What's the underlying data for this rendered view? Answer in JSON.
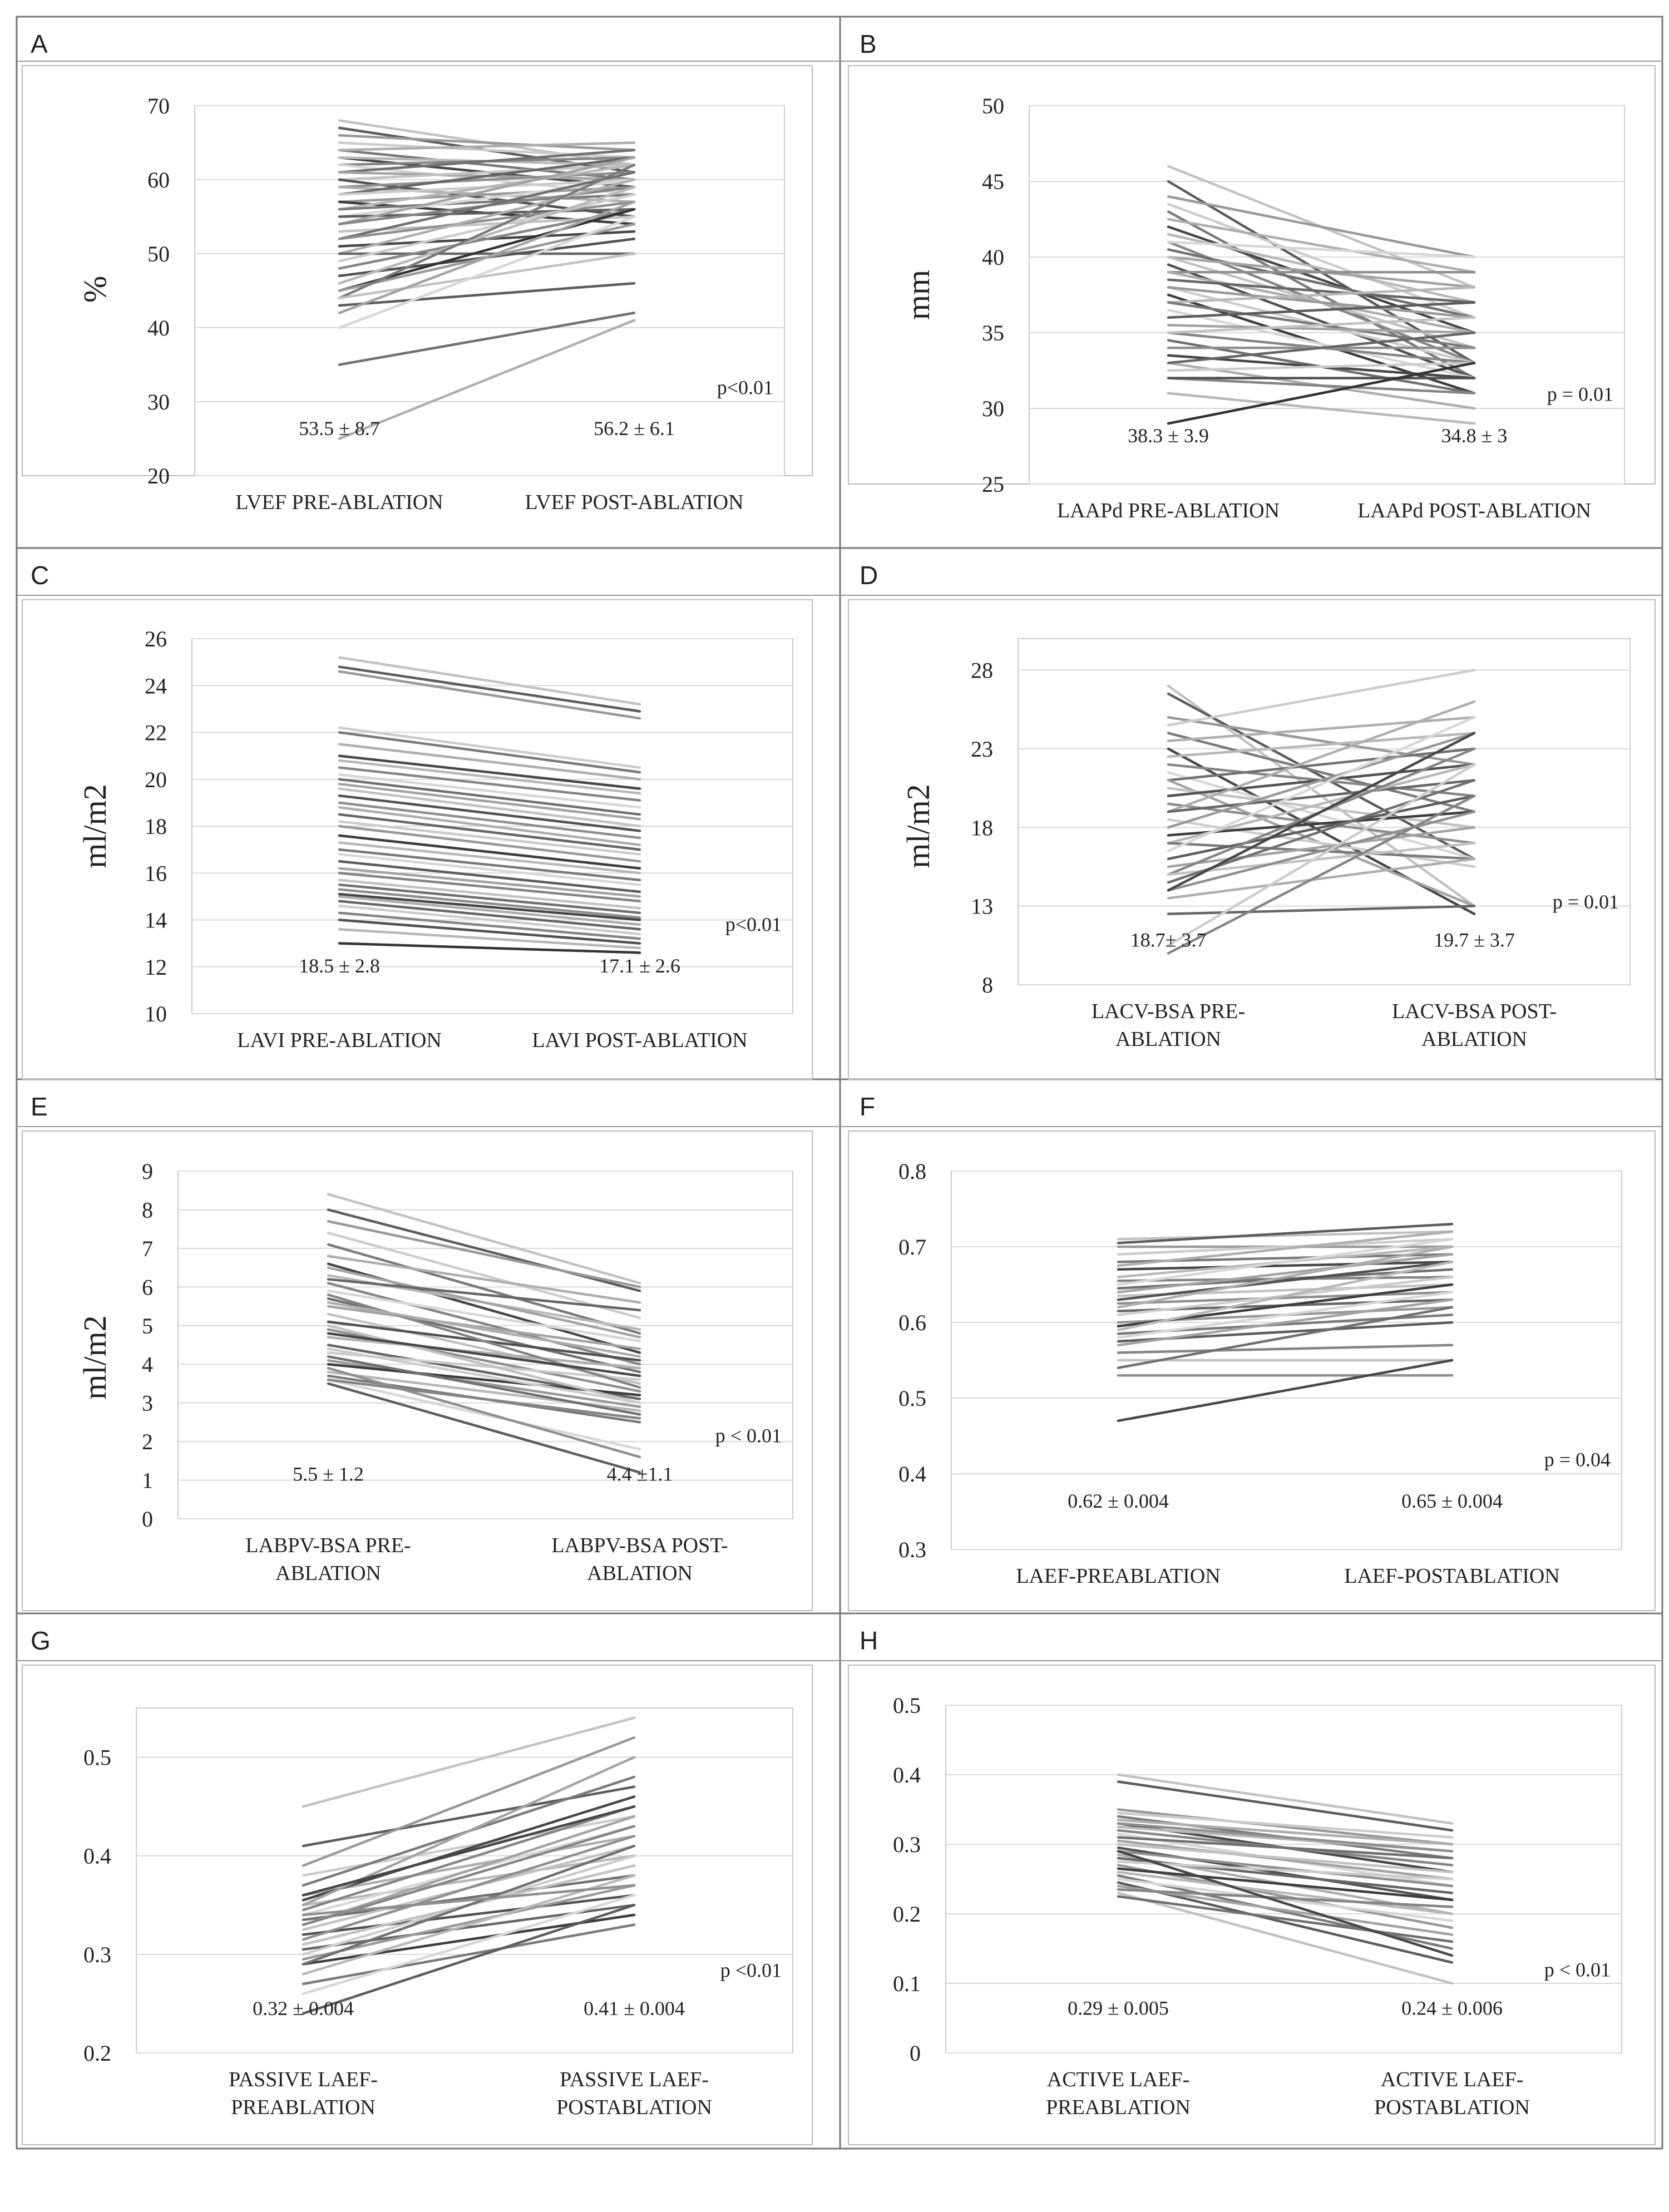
{
  "figure": {
    "title": ""
  },
  "chart_data": [
    {
      "panel": "A",
      "type": "line",
      "categories": [
        "LVEF PRE-ABLATION",
        "LVEF POST-ABLATION"
      ],
      "ylabel": "%",
      "ylim": [
        20,
        70
      ],
      "yticks": [
        "70",
        "60",
        "50",
        "40",
        "30",
        "20"
      ],
      "tick_values": [
        70,
        60,
        50,
        40,
        30,
        20
      ],
      "annot_pre": "53.5 ± 8.7",
      "annot_post": "56.2 ± 6.1",
      "pvalue": "p<0.01",
      "series_pre": [
        68,
        67,
        66,
        65,
        64,
        64,
        63,
        63,
        62,
        62,
        61,
        61,
        60,
        60,
        59,
        59,
        58,
        58,
        57,
        57,
        56,
        56,
        55,
        55,
        54,
        54,
        53,
        52,
        52,
        51,
        50,
        50,
        49,
        48,
        47,
        46,
        45,
        45,
        44,
        44,
        43,
        42,
        40,
        35,
        25
      ],
      "series_post": [
        62,
        61,
        64,
        63,
        60,
        65,
        59,
        62,
        63,
        58,
        64,
        60,
        62,
        55,
        61,
        57,
        63,
        60,
        59,
        54,
        62,
        58,
        60,
        56,
        63,
        59,
        55,
        61,
        57,
        53,
        60,
        50,
        58,
        56,
        52,
        59,
        56,
        54,
        62,
        50,
        46,
        57,
        55,
        42,
        41
      ],
      "shades": [
        0.2,
        0.7,
        0.4,
        0.15,
        0.55,
        0.3,
        0.8,
        0.25,
        0.5,
        0.1,
        0.6,
        0.35,
        0.2,
        0.75,
        0.45,
        0.3,
        0.65,
        0.15,
        0.4,
        0.85,
        0.25,
        0.55,
        0.1,
        0.7,
        0.35,
        0.5,
        0.2,
        0.6,
        0.45,
        0.8,
        0.3,
        0.65,
        0.15,
        0.5,
        0.75,
        0.25,
        0.9,
        0.4,
        0.55,
        0.2,
        0.7,
        0.35,
        0.1,
        0.6,
        0.3
      ]
    },
    {
      "panel": "B",
      "type": "line",
      "categories": [
        "LAAPd PRE-ABLATION",
        "LAAPd POST-ABLATION"
      ],
      "ylabel": "mm",
      "ylim": [
        25,
        50
      ],
      "yticks": [
        "50",
        "45",
        "40",
        "35",
        "30",
        "25"
      ],
      "tick_values": [
        50,
        45,
        40,
        35,
        30,
        25
      ],
      "annot_pre": "38.3 ± 3.9",
      "annot_post": "34.8 ± 3",
      "pvalue": "p = 0.01",
      "series_pre": [
        46,
        45,
        44,
        43.5,
        43,
        42.5,
        42,
        41.5,
        41,
        41,
        40.5,
        40,
        40,
        39.5,
        39,
        39,
        38.5,
        38,
        38,
        37.5,
        37,
        37,
        36.5,
        36,
        35.5,
        35,
        35,
        34.5,
        34,
        33.5,
        33,
        33,
        32.5,
        32,
        32,
        31,
        29
      ],
      "series_post": [
        38,
        33,
        40,
        36,
        32,
        39,
        35,
        37,
        33,
        40,
        36,
        38,
        34,
        32,
        39,
        35,
        37,
        33,
        36,
        31,
        38,
        34,
        32,
        37,
        35,
        33,
        36,
        31,
        34,
        32,
        30,
        35,
        33,
        31,
        32,
        29,
        33
      ],
      "shades": [
        0.2,
        0.7,
        0.4,
        0.15,
        0.55,
        0.3,
        0.8,
        0.25,
        0.5,
        0.1,
        0.6,
        0.35,
        0.2,
        0.75,
        0.45,
        0.3,
        0.65,
        0.15,
        0.4,
        0.85,
        0.25,
        0.55,
        0.1,
        0.7,
        0.35,
        0.5,
        0.2,
        0.6,
        0.45,
        0.8,
        0.3,
        0.65,
        0.15,
        0.5,
        0.75,
        0.25,
        0.9
      ]
    },
    {
      "panel": "C",
      "type": "line",
      "categories": [
        "LAVI PRE-ABLATION",
        "LAVI POST-ABLATION"
      ],
      "ylabel": "ml/m2",
      "ylim": [
        10,
        26
      ],
      "yticks": [
        "26",
        "24",
        "22",
        "20",
        "18",
        "16",
        "14",
        "12",
        "10"
      ],
      "tick_values": [
        26,
        24,
        22,
        20,
        18,
        16,
        14,
        12,
        10
      ],
      "annot_pre": "18.5 ± 2.8",
      "annot_post": "17.1 ± 2.6",
      "pvalue": "p<0.01",
      "series_pre": [
        25.2,
        24.8,
        24.6,
        22.2,
        22,
        21.5,
        21,
        20.8,
        20.5,
        20.2,
        20,
        19.8,
        19.6,
        19.3,
        19,
        18.8,
        18.5,
        18.2,
        18,
        17.6,
        17.3,
        17,
        16.8,
        16.5,
        16.2,
        16,
        15.7,
        15.5,
        15.3,
        15.1,
        15,
        14.8,
        14.6,
        14.3,
        14,
        13.6,
        13
      ],
      "series_post": [
        23.2,
        22.9,
        22.6,
        20.5,
        20.3,
        20,
        19.6,
        19.4,
        19.1,
        18.8,
        18.5,
        18.3,
        18,
        17.8,
        17.5,
        17.2,
        17,
        16.8,
        16.5,
        16.2,
        16,
        15.7,
        15.5,
        15.2,
        15,
        14.8,
        14.5,
        14.3,
        14.1,
        14,
        13.8,
        13.6,
        13.4,
        13.2,
        13,
        12.8,
        12.6
      ],
      "shades": [
        0.2,
        0.7,
        0.4,
        0.15,
        0.55,
        0.3,
        0.8,
        0.25,
        0.5,
        0.1,
        0.6,
        0.35,
        0.2,
        0.75,
        0.45,
        0.3,
        0.65,
        0.15,
        0.4,
        0.85,
        0.25,
        0.55,
        0.1,
        0.7,
        0.35,
        0.5,
        0.2,
        0.6,
        0.45,
        0.8,
        0.3,
        0.65,
        0.15,
        0.5,
        0.75,
        0.25,
        0.9
      ]
    },
    {
      "panel": "D",
      "type": "line",
      "categories": [
        "LACV-BSA PRE-\nABLATION",
        "LACV-BSA POST-\nABLATION"
      ],
      "ylabel": "ml/m2",
      "ylim": [
        8,
        30
      ],
      "yticks": [
        "28",
        "23",
        "18",
        "13",
        "8"
      ],
      "tick_values": [
        28,
        23,
        18,
        13,
        8
      ],
      "annot_pre": "18.7± 3.7",
      "annot_post": "19.7 ± 3.7",
      "pvalue": "p = 0.01",
      "series_pre": [
        27,
        26.5,
        25,
        24.5,
        24,
        23.5,
        23,
        22.5,
        22,
        21.5,
        21,
        21,
        20.5,
        20,
        19.5,
        19,
        19,
        18.5,
        18,
        17.5,
        17,
        17,
        16.5,
        16,
        15.5,
        15,
        15,
        14.5,
        14,
        14,
        13.5,
        12.5,
        10.5,
        10
      ],
      "series_post": [
        13,
        16,
        22,
        28,
        19,
        25,
        12.5,
        24,
        20,
        16,
        23,
        13,
        18,
        22,
        17,
        26,
        21,
        15.5,
        24,
        19,
        22,
        16,
        25,
        20,
        18,
        23,
        17,
        21,
        19,
        24,
        16,
        13,
        22,
        20
      ],
      "shades": [
        0.2,
        0.7,
        0.4,
        0.15,
        0.55,
        0.3,
        0.8,
        0.25,
        0.5,
        0.1,
        0.6,
        0.35,
        0.2,
        0.75,
        0.45,
        0.3,
        0.65,
        0.15,
        0.4,
        0.85,
        0.25,
        0.55,
        0.1,
        0.7,
        0.35,
        0.5,
        0.2,
        0.6,
        0.45,
        0.8,
        0.3,
        0.65,
        0.15,
        0.5
      ]
    },
    {
      "panel": "E",
      "type": "line",
      "categories": [
        "LABPV-BSA PRE-\nABLATION",
        "LABPV-BSA POST-\nABLATION"
      ],
      "ylabel": "ml/m2",
      "ylim": [
        0,
        9
      ],
      "yticks": [
        "9",
        "8",
        "7",
        "6",
        "5",
        "4",
        "3",
        "2",
        "1",
        "0"
      ],
      "tick_values": [
        9,
        8,
        7,
        6,
        5,
        4,
        3,
        2,
        1,
        0
      ],
      "annot_pre": "5.5 ± 1.2",
      "annot_post": "4.4 ±1.1",
      "pvalue": "p < 0.01",
      "series_pre": [
        8.4,
        8,
        7.7,
        7.4,
        7.1,
        6.8,
        6.6,
        6.3,
        6.1,
        5.9,
        5.7,
        5.5,
        5.3,
        5.1,
        4.9,
        4.7,
        4.5,
        4.3,
        4.1,
        4,
        3.8,
        3.7,
        3.6,
        3.5,
        6.5,
        5.8,
        5,
        4.2,
        3.9,
        4.8,
        5.6,
        6.2,
        4.4,
        3.6
      ],
      "series_post": [
        6.1,
        5.9,
        6,
        5.2,
        4.8,
        5.6,
        4.3,
        4.9,
        4,
        4.6,
        3.8,
        4.4,
        3.5,
        4.1,
        3.3,
        3.9,
        3.1,
        3.6,
        2.9,
        3.2,
        2.8,
        2.5,
        1.8,
        1.2,
        4.7,
        3.4,
        3,
        2.7,
        1.6,
        3.7,
        4.2,
        5.4,
        3,
        2.6
      ],
      "shades": [
        0.2,
        0.7,
        0.4,
        0.15,
        0.55,
        0.3,
        0.8,
        0.25,
        0.5,
        0.1,
        0.6,
        0.35,
        0.2,
        0.75,
        0.45,
        0.3,
        0.65,
        0.15,
        0.4,
        0.85,
        0.25,
        0.55,
        0.1,
        0.7,
        0.35,
        0.5,
        0.2,
        0.6,
        0.45,
        0.8,
        0.3,
        0.65,
        0.15,
        0.5
      ]
    },
    {
      "panel": "F",
      "type": "line",
      "categories": [
        "LAEF-PREABLATION",
        "LAEF-POSTABLATION"
      ],
      "ylabel": "",
      "ylim": [
        0.3,
        0.8
      ],
      "yticks": [
        "0.8",
        "0.7",
        "0.6",
        "0.5",
        "0.4",
        "0.3"
      ],
      "tick_values": [
        0.8,
        0.7,
        0.6,
        0.5,
        0.4,
        0.3
      ],
      "annot_pre": "0.62 ± 0.004",
      "annot_post": "0.65 ± 0.004",
      "pvalue": "p = 0.04",
      "series_pre": [
        0.71,
        0.705,
        0.7,
        0.69,
        0.68,
        0.675,
        0.67,
        0.66,
        0.655,
        0.65,
        0.645,
        0.64,
        0.635,
        0.63,
        0.625,
        0.62,
        0.615,
        0.61,
        0.6,
        0.595,
        0.59,
        0.585,
        0.58,
        0.575,
        0.57,
        0.56,
        0.55,
        0.54,
        0.53,
        0.47
      ],
      "series_post": [
        0.72,
        0.73,
        0.7,
        0.71,
        0.69,
        0.72,
        0.68,
        0.7,
        0.66,
        0.71,
        0.67,
        0.69,
        0.65,
        0.68,
        0.64,
        0.7,
        0.63,
        0.66,
        0.62,
        0.65,
        0.68,
        0.61,
        0.64,
        0.6,
        0.63,
        0.57,
        0.55,
        0.62,
        0.53,
        0.55
      ],
      "shades": [
        0.2,
        0.7,
        0.4,
        0.15,
        0.55,
        0.3,
        0.8,
        0.25,
        0.5,
        0.1,
        0.6,
        0.35,
        0.2,
        0.75,
        0.45,
        0.3,
        0.65,
        0.15,
        0.4,
        0.85,
        0.25,
        0.55,
        0.1,
        0.7,
        0.35,
        0.5,
        0.2,
        0.6,
        0.45,
        0.8
      ]
    },
    {
      "panel": "G",
      "type": "line",
      "categories": [
        "PASSIVE LAEF-\nPREABLATION",
        "PASSIVE LAEF-\nPOSTABLATION"
      ],
      "ylabel": "",
      "ylim": [
        0.2,
        0.55
      ],
      "yticks": [
        "0.5",
        "0.4",
        "0.3",
        "0.2"
      ],
      "tick_values": [
        0.5,
        0.4,
        0.3,
        0.2
      ],
      "annot_pre": "0.32 ± 0.004",
      "annot_post": "0.41 ± 0.004",
      "pvalue": "p <0.01",
      "series_pre": [
        0.45,
        0.41,
        0.39,
        0.38,
        0.37,
        0.36,
        0.355,
        0.35,
        0.345,
        0.34,
        0.335,
        0.33,
        0.325,
        0.32,
        0.315,
        0.31,
        0.305,
        0.3,
        0.295,
        0.29,
        0.28,
        0.27,
        0.26,
        0.24,
        0.35,
        0.33,
        0.31,
        0.29,
        0.34,
        0.36
      ],
      "series_post": [
        0.54,
        0.47,
        0.52,
        0.44,
        0.48,
        0.42,
        0.46,
        0.4,
        0.45,
        0.43,
        0.38,
        0.44,
        0.41,
        0.36,
        0.42,
        0.39,
        0.35,
        0.4,
        0.37,
        0.34,
        0.38,
        0.33,
        0.36,
        0.35,
        0.5,
        0.43,
        0.39,
        0.41,
        0.37,
        0.45
      ],
      "shades": [
        0.2,
        0.7,
        0.4,
        0.15,
        0.55,
        0.3,
        0.8,
        0.25,
        0.5,
        0.1,
        0.6,
        0.35,
        0.2,
        0.75,
        0.45,
        0.3,
        0.65,
        0.15,
        0.4,
        0.85,
        0.25,
        0.55,
        0.1,
        0.7,
        0.35,
        0.5,
        0.2,
        0.6,
        0.45,
        0.8
      ]
    },
    {
      "panel": "H",
      "type": "line",
      "categories": [
        "ACTIVE LAEF-\nPREABLATION",
        "ACTIVE LAEF-\nPOSTABLATION"
      ],
      "ylabel": "",
      "ylim": [
        0,
        0.5
      ],
      "yticks": [
        "0.5",
        "0.4",
        "0.3",
        "0.2",
        "0.1",
        "0"
      ],
      "tick_values": [
        0.5,
        0.4,
        0.3,
        0.2,
        0.1,
        0
      ],
      "annot_pre": "0.29 ± 0.005",
      "annot_post": "0.24 ± 0.006",
      "pvalue": "p < 0.01",
      "series_pre": [
        0.4,
        0.39,
        0.35,
        0.345,
        0.34,
        0.335,
        0.33,
        0.325,
        0.32,
        0.315,
        0.31,
        0.305,
        0.3,
        0.295,
        0.29,
        0.285,
        0.28,
        0.275,
        0.27,
        0.265,
        0.26,
        0.255,
        0.25,
        0.245,
        0.24,
        0.235,
        0.23,
        0.225,
        0.33,
        0.29
      ],
      "series_post": [
        0.33,
        0.32,
        0.3,
        0.31,
        0.28,
        0.3,
        0.26,
        0.29,
        0.27,
        0.24,
        0.28,
        0.25,
        0.26,
        0.22,
        0.24,
        0.2,
        0.23,
        0.25,
        0.18,
        0.22,
        0.2,
        0.15,
        0.19,
        0.13,
        0.17,
        0.21,
        0.1,
        0.16,
        0.29,
        0.14
      ],
      "shades": [
        0.2,
        0.7,
        0.4,
        0.15,
        0.55,
        0.3,
        0.8,
        0.25,
        0.5,
        0.1,
        0.6,
        0.35,
        0.2,
        0.75,
        0.45,
        0.3,
        0.65,
        0.15,
        0.4,
        0.85,
        0.25,
        0.55,
        0.1,
        0.7,
        0.35,
        0.5,
        0.2,
        0.6,
        0.45,
        0.8
      ]
    }
  ]
}
